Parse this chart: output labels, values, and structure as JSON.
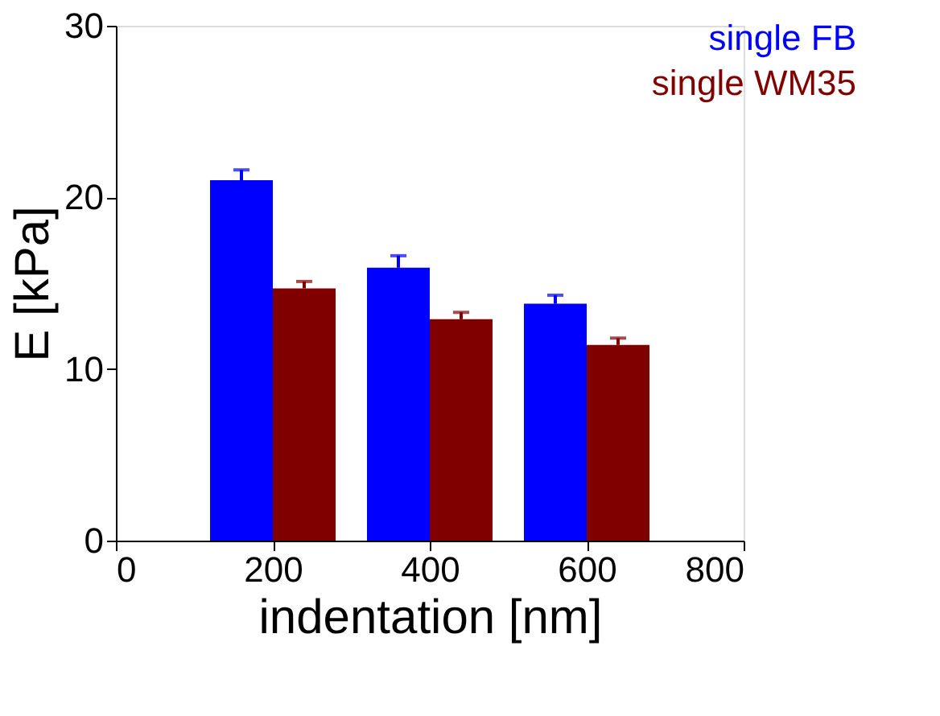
{
  "chart_data": {
    "type": "bar",
    "xlabel": "indentation [nm]",
    "ylabel": "E [kPa]",
    "xlim": [
      0,
      800
    ],
    "xticks": [
      0,
      200,
      400,
      600,
      800
    ],
    "ylim": [
      0,
      30
    ],
    "yticks": [
      0,
      10,
      20,
      30
    ],
    "grid": false,
    "legend": "top right",
    "series": [
      {
        "name": "single FB",
        "color": "#0000ff",
        "x": [
          160,
          360,
          560
        ],
        "values": [
          21.0,
          15.9,
          13.8
        ],
        "errors": [
          [
            21.0,
            21.6
          ],
          [
            15.9,
            16.6
          ],
          [
            13.8,
            14.3
          ]
        ]
      },
      {
        "name": "single WM35",
        "color": "#800000",
        "x": [
          240,
          440,
          640
        ],
        "values": [
          14.7,
          12.9,
          11.4
        ],
        "errors": [
          [
            14.7,
            15.1
          ],
          [
            12.9,
            13.3
          ],
          [
            11.4,
            11.8
          ]
        ]
      }
    ]
  }
}
